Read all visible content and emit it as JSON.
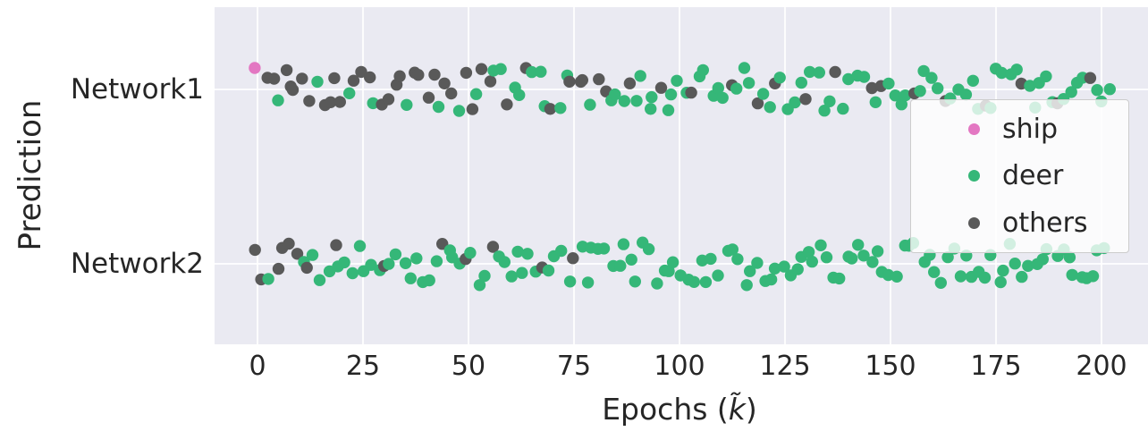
{
  "style": {
    "plot_bg": "#eaeaf2",
    "grid_color": "#ffffff",
    "text_color": "#262626",
    "legend_border": "#cccccc"
  },
  "labels": {
    "xlabel_prefix": "Epochs (",
    "xlabel_var": "k̃",
    "xlabel_suffix": ")",
    "ylabel": "Prediction"
  },
  "chart_data": {
    "type": "scatter",
    "title": "",
    "xlabel": "Epochs (k̃)",
    "ylabel": "Prediction",
    "x_ticks": [
      0,
      25,
      50,
      75,
      100,
      125,
      150,
      175,
      200
    ],
    "xlim": [
      -10,
      211
    ],
    "grid": true,
    "y_categories": [
      "Network1",
      "Network2"
    ],
    "legend": {
      "position": "right",
      "entries": [
        {
          "label": "ship",
          "color": "#e377c2"
        },
        {
          "label": "deer",
          "color": "#35b778"
        },
        {
          "label": "others",
          "color": "#595959"
        }
      ]
    },
    "series_colors": {
      "ship": "#e377c2",
      "deer": "#35b778",
      "others": "#595959"
    },
    "color_key": {
      "s": "ship",
      "d": "deer",
      "o": "others"
    },
    "networks": [
      {
        "name": "Network1",
        "points": [
          [
            0,
            "s"
          ],
          [
            2,
            "o"
          ],
          [
            3.5,
            "o"
          ],
          [
            5,
            "d"
          ],
          [
            6.5,
            "o"
          ],
          [
            8,
            "o"
          ],
          [
            9,
            "o"
          ],
          [
            11,
            "o"
          ],
          [
            12.5,
            "o"
          ],
          [
            14,
            "d"
          ],
          [
            15.5,
            "o"
          ],
          [
            17,
            "o"
          ],
          [
            18.5,
            "o"
          ],
          [
            20,
            "o"
          ],
          [
            21.5,
            "d"
          ],
          [
            23,
            "o"
          ],
          [
            25,
            "o"
          ],
          [
            26.5,
            "o"
          ],
          [
            28,
            "d"
          ],
          [
            29.5,
            "o"
          ],
          [
            31,
            "o"
          ],
          [
            32.5,
            "o"
          ],
          [
            34,
            "o"
          ],
          [
            35.5,
            "d"
          ],
          [
            37,
            "o"
          ],
          [
            38.5,
            "o"
          ],
          [
            40,
            "o"
          ],
          [
            41.5,
            "o"
          ],
          [
            43,
            "d"
          ],
          [
            44.5,
            "o"
          ],
          [
            46,
            "o"
          ],
          [
            47.5,
            "d"
          ],
          [
            49,
            "o"
          ],
          [
            50.5,
            "o"
          ],
          [
            52,
            "d"
          ],
          [
            53.5,
            "o"
          ],
          [
            55,
            "o"
          ],
          [
            56.5,
            "d"
          ],
          [
            58,
            "d"
          ],
          [
            59.5,
            "o"
          ],
          [
            61,
            "d"
          ],
          [
            62.5,
            "d"
          ],
          [
            64,
            "o"
          ],
          [
            65.5,
            "d"
          ],
          [
            67,
            "d"
          ],
          [
            68.5,
            "d"
          ],
          [
            70,
            "o"
          ],
          [
            71.5,
            "d"
          ],
          [
            73,
            "d"
          ],
          [
            74.5,
            "o"
          ],
          [
            76,
            "o"
          ],
          [
            77.5,
            "o"
          ],
          [
            79,
            "d"
          ],
          [
            80.5,
            "o"
          ],
          [
            82,
            "o"
          ],
          [
            83.5,
            "d"
          ],
          [
            85,
            "d"
          ],
          [
            86.5,
            "d"
          ],
          [
            88,
            "o"
          ],
          [
            89.5,
            "d"
          ],
          [
            91,
            "d"
          ],
          [
            92.5,
            "d"
          ],
          [
            94,
            "d"
          ],
          [
            95.5,
            "o"
          ],
          [
            97,
            "d"
          ],
          [
            98.5,
            "d"
          ],
          [
            100,
            "d"
          ],
          [
            101.5,
            "d"
          ],
          [
            103,
            "o"
          ],
          [
            104.5,
            "d"
          ],
          [
            106,
            "d"
          ],
          [
            107.5,
            "d"
          ],
          [
            109,
            "d"
          ],
          [
            110.5,
            "d"
          ],
          [
            112,
            "o"
          ],
          [
            113.5,
            "d"
          ],
          [
            115,
            "d"
          ],
          [
            116.5,
            "d"
          ],
          [
            118,
            "o"
          ],
          [
            119.5,
            "d"
          ],
          [
            121,
            "d"
          ],
          [
            122.5,
            "o"
          ],
          [
            124,
            "d"
          ],
          [
            125.5,
            "d"
          ],
          [
            127,
            "d"
          ],
          [
            128.5,
            "d"
          ],
          [
            130,
            "o"
          ],
          [
            131.5,
            "d"
          ],
          [
            133,
            "d"
          ],
          [
            134.5,
            "d"
          ],
          [
            136,
            "d"
          ],
          [
            137.5,
            "o"
          ],
          [
            139,
            "d"
          ],
          [
            140.5,
            "d"
          ],
          [
            142,
            "d"
          ],
          [
            143.5,
            "d"
          ],
          [
            145,
            "o"
          ],
          [
            146.5,
            "d"
          ],
          [
            148,
            "o"
          ],
          [
            149.5,
            "d"
          ],
          [
            151,
            "d"
          ],
          [
            152.5,
            "d"
          ],
          [
            154,
            "d"
          ],
          [
            155.5,
            "o"
          ],
          [
            157,
            "d"
          ],
          [
            158.5,
            "d"
          ],
          [
            160,
            "d"
          ],
          [
            161.5,
            "d"
          ],
          [
            163,
            "o"
          ],
          [
            164.5,
            "d"
          ],
          [
            166,
            "d"
          ],
          [
            167.5,
            "d"
          ],
          [
            169,
            "d"
          ],
          [
            170.5,
            "d"
          ],
          [
            172,
            "o"
          ],
          [
            173.5,
            "d"
          ],
          [
            175,
            "d"
          ],
          [
            176.5,
            "d"
          ],
          [
            178,
            "d"
          ],
          [
            179.5,
            "d"
          ],
          [
            181,
            "o"
          ],
          [
            182.5,
            "d"
          ],
          [
            184,
            "d"
          ],
          [
            185.5,
            "d"
          ],
          [
            187,
            "d"
          ],
          [
            188.5,
            "d"
          ],
          [
            190,
            "o"
          ],
          [
            191.5,
            "d"
          ],
          [
            193,
            "d"
          ],
          [
            194.5,
            "d"
          ],
          [
            196,
            "d"
          ],
          [
            197.5,
            "o"
          ],
          [
            199,
            "d"
          ],
          [
            200.5,
            "d"
          ],
          [
            202,
            "d"
          ]
        ]
      },
      {
        "name": "Network2",
        "points": [
          [
            0,
            "o"
          ],
          [
            1.5,
            "o"
          ],
          [
            3,
            "d"
          ],
          [
            4.5,
            "o"
          ],
          [
            6,
            "o"
          ],
          [
            7.5,
            "o"
          ],
          [
            9,
            "o"
          ],
          [
            10.5,
            "d"
          ],
          [
            12,
            "o"
          ],
          [
            13.5,
            "d"
          ],
          [
            15,
            "d"
          ],
          [
            16.5,
            "d"
          ],
          [
            18,
            "o"
          ],
          [
            19.5,
            "d"
          ],
          [
            21,
            "d"
          ],
          [
            22.5,
            "d"
          ],
          [
            24,
            "d"
          ],
          [
            25.5,
            "d"
          ],
          [
            27,
            "d"
          ],
          [
            28.5,
            "d"
          ],
          [
            30,
            "o"
          ],
          [
            31.5,
            "d"
          ],
          [
            33,
            "d"
          ],
          [
            34.5,
            "d"
          ],
          [
            36,
            "d"
          ],
          [
            37.5,
            "d"
          ],
          [
            39,
            "d"
          ],
          [
            40.5,
            "d"
          ],
          [
            42,
            "d"
          ],
          [
            43.5,
            "o"
          ],
          [
            45,
            "d"
          ],
          [
            46.5,
            "d"
          ],
          [
            48,
            "d"
          ],
          [
            49.5,
            "o"
          ],
          [
            51,
            "d"
          ],
          [
            52.5,
            "d"
          ],
          [
            54,
            "d"
          ],
          [
            55.5,
            "o"
          ],
          [
            57,
            "d"
          ],
          [
            58.5,
            "d"
          ],
          [
            60,
            "d"
          ],
          [
            61.5,
            "d"
          ],
          [
            63,
            "d"
          ],
          [
            64.5,
            "d"
          ],
          [
            66,
            "d"
          ],
          [
            67.5,
            "o"
          ],
          [
            69,
            "d"
          ],
          [
            70.5,
            "d"
          ],
          [
            72,
            "d"
          ],
          [
            73.5,
            "d"
          ],
          [
            75,
            "o"
          ],
          [
            76.5,
            "d"
          ],
          [
            78,
            "d"
          ],
          [
            79.5,
            "d"
          ],
          [
            81,
            "d"
          ],
          [
            82.5,
            "d"
          ],
          [
            84,
            "d"
          ],
          [
            85.5,
            "d"
          ],
          [
            87,
            "d"
          ],
          [
            88.5,
            "d"
          ],
          [
            90,
            "d"
          ],
          [
            91.5,
            "d"
          ],
          [
            93,
            "d"
          ],
          [
            94.5,
            "d"
          ],
          [
            96,
            "d"
          ],
          [
            97.5,
            "d"
          ],
          [
            99,
            "d"
          ],
          [
            100.5,
            "d"
          ],
          [
            102,
            "d"
          ],
          [
            103.5,
            "d"
          ],
          [
            105,
            "d"
          ],
          [
            106.5,
            "d"
          ],
          [
            108,
            "d"
          ],
          [
            109.5,
            "d"
          ],
          [
            111,
            "d"
          ],
          [
            112.5,
            "d"
          ],
          [
            114,
            "d"
          ],
          [
            115.5,
            "d"
          ],
          [
            117,
            "d"
          ],
          [
            118.5,
            "d"
          ],
          [
            120,
            "d"
          ],
          [
            121.5,
            "d"
          ],
          [
            123,
            "d"
          ],
          [
            124.5,
            "d"
          ],
          [
            126,
            "d"
          ],
          [
            127.5,
            "d"
          ],
          [
            129,
            "d"
          ],
          [
            130.5,
            "d"
          ],
          [
            132,
            "d"
          ],
          [
            133.5,
            "d"
          ],
          [
            135,
            "d"
          ],
          [
            136.5,
            "d"
          ],
          [
            138,
            "d"
          ],
          [
            139.5,
            "d"
          ],
          [
            141,
            "d"
          ],
          [
            142.5,
            "d"
          ],
          [
            144,
            "d"
          ],
          [
            145.5,
            "d"
          ],
          [
            147,
            "d"
          ],
          [
            148.5,
            "d"
          ],
          [
            150,
            "d"
          ],
          [
            151.5,
            "d"
          ],
          [
            153,
            "d"
          ],
          [
            154.5,
            "d"
          ],
          [
            156,
            "d"
          ],
          [
            157.5,
            "d"
          ],
          [
            159,
            "d"
          ],
          [
            160.5,
            "d"
          ],
          [
            162,
            "d"
          ],
          [
            163.5,
            "d"
          ],
          [
            165,
            "d"
          ],
          [
            166.5,
            "d"
          ],
          [
            168,
            "d"
          ],
          [
            169.5,
            "d"
          ],
          [
            171,
            "d"
          ],
          [
            172.5,
            "d"
          ],
          [
            174,
            "d"
          ],
          [
            175.5,
            "d"
          ],
          [
            177,
            "d"
          ],
          [
            178.5,
            "d"
          ],
          [
            180,
            "d"
          ],
          [
            181.5,
            "d"
          ],
          [
            183,
            "d"
          ],
          [
            184.5,
            "d"
          ],
          [
            186,
            "d"
          ],
          [
            187.5,
            "d"
          ],
          [
            189,
            "d"
          ],
          [
            190.5,
            "d"
          ],
          [
            192,
            "d"
          ],
          [
            193.5,
            "d"
          ],
          [
            195,
            "d"
          ],
          [
            196.5,
            "d"
          ],
          [
            198,
            "d"
          ],
          [
            199.5,
            "d"
          ],
          [
            201,
            "d"
          ]
        ]
      }
    ]
  }
}
